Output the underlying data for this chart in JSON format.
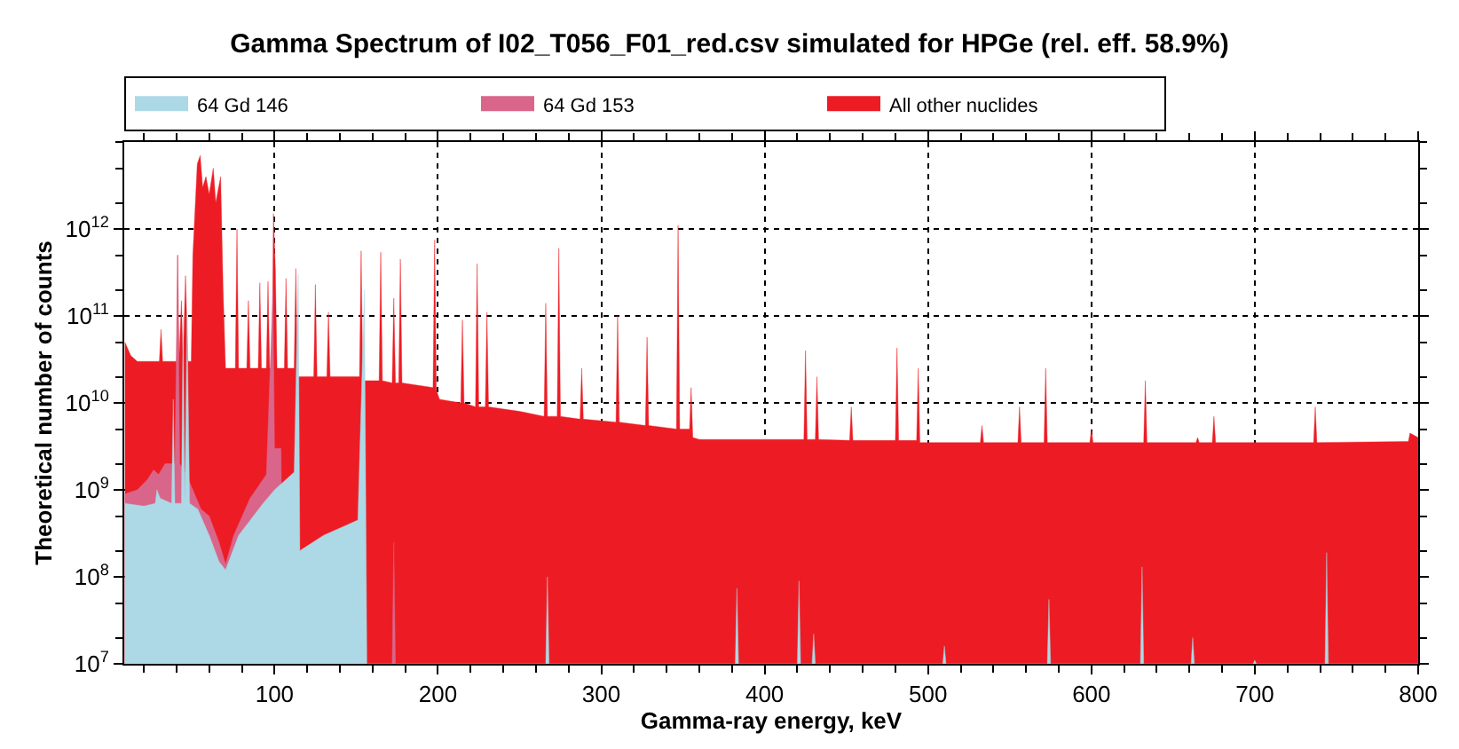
{
  "chart_data": {
    "type": "area",
    "title": "Gamma Spectrum of I02_T056_F01_red.csv simulated for HPGe (rel. eff. 58.9%)",
    "xlabel": "Gamma-ray energy, keV",
    "ylabel": "Theoretical number of counts",
    "log": "y",
    "grid": true,
    "legend": "top",
    "xlim": [
      8,
      800
    ],
    "xticks": [
      100,
      200,
      300,
      400,
      500,
      600,
      700,
      800
    ],
    "ylim": [
      10000000.0,
      10000000000000.0
    ],
    "yticks": [
      {
        "value": 10000000.0,
        "label": "10$^{7}$"
      },
      {
        "value": 100000000.0,
        "label": "10$^{8}$"
      },
      {
        "value": 1000000000.0,
        "label": "10$^{9}$"
      },
      {
        "value": 10000000000.0,
        "label": "10$^{10}$"
      },
      {
        "value": 100000000000.0,
        "label": "10$^{11}$"
      },
      {
        "value": 1000000000000.0,
        "label": "10$^{12}$"
      }
    ],
    "series": [
      {
        "name": "All other nuclides",
        "color": "#ed1c24",
        "x": [
          8.4,
          12,
          16,
          26,
          29.5,
          30.5,
          31.5,
          40,
          40.7,
          41.5,
          43,
          44,
          45.5,
          47,
          49,
          50,
          52.7,
          54.5,
          56,
          58,
          60,
          62.5,
          64,
          67,
          68.5,
          70,
          76,
          77,
          78,
          83,
          84,
          85,
          90,
          91,
          92,
          95,
          96,
          97,
          98.5,
          99.3,
          100.5,
          101.5,
          106,
          107,
          108,
          112,
          113,
          114,
          124,
          125,
          126,
          132,
          133,
          134,
          152,
          153,
          154,
          164,
          165,
          166,
          172,
          173,
          174,
          176,
          177,
          178,
          197,
          198,
          199,
          201,
          214,
          215,
          216,
          223,
          224,
          225,
          229,
          230,
          231,
          250,
          265,
          266,
          267,
          273,
          274,
          275,
          287,
          288,
          289,
          309,
          310,
          311,
          327,
          328,
          329,
          346,
          347,
          348,
          354,
          355,
          356,
          360,
          424,
          425,
          426,
          431,
          432,
          433,
          452,
          453,
          454,
          480,
          481,
          482,
          493,
          494,
          495,
          532,
          533,
          534,
          555,
          556,
          557,
          571,
          572,
          573,
          599,
          600,
          601,
          632,
          633,
          634,
          664,
          665,
          666,
          674,
          675,
          676,
          736,
          737,
          738,
          794,
          795,
          800
        ],
        "values": [
          50000000000.0,
          35000000000.0,
          30000000000.0,
          30000000000.0,
          30000000000.0,
          70000000000.0,
          30000000000.0,
          30000000000.0,
          500000000000.0,
          30000000000.0,
          150000000000.0,
          30000000000.0,
          290000000000.0,
          30000000000.0,
          30000000000.0,
          500000000000.0,
          5600000000000.0,
          7000000000000.0,
          3000000000000.0,
          4000000000000.0,
          2500000000000.0,
          5000000000000.0,
          2000000000000.0,
          4000000000000.0,
          200000000000.0,
          25000000000.0,
          25000000000.0,
          1000000000000.0,
          25000000000.0,
          25000000000.0,
          150000000000.0,
          25000000000.0,
          25000000000.0,
          240000000000.0,
          25000000000.0,
          25000000000.0,
          250000000000.0,
          25000000000.0,
          25000000000.0,
          1500000000000.0,
          350000000000.0,
          25000000000.0,
          25000000000.0,
          270000000000.0,
          25000000000.0,
          25000000000.0,
          350000000000.0,
          20000000000.0,
          20000000000.0,
          230000000000.0,
          20000000000.0,
          20000000000.0,
          110000000000.0,
          20000000000.0,
          20000000000.0,
          560000000000.0,
          18000000000.0,
          18000000000.0,
          540000000000.0,
          18000000000.0,
          17000000000.0,
          160000000000.0,
          17000000000.0,
          17000000000.0,
          450000000000.0,
          17000000000.0,
          15000000000.0,
          750000000000.0,
          14000000000.0,
          11000000000.0,
          10000000000.0,
          90000000000.0,
          10000000000.0,
          9000000000.0,
          400000000000.0,
          9000000000.0,
          9000000000.0,
          110000000000.0,
          9000000000.0,
          8000000000.0,
          7000000000.0,
          140000000000.0,
          7000000000.0,
          7000000000.0,
          600000000000.0,
          7000000000.0,
          6500000000.0,
          25000000000.0,
          6500000000.0,
          6000000000.0,
          100000000000.0,
          6000000000.0,
          5500000000.0,
          57000000000.0,
          5500000000.0,
          5000000000.0,
          1100000000000.0,
          5000000000.0,
          5000000000.0,
          15000000000.0,
          4000000000.0,
          3800000000.0,
          3800000000.0,
          40000000000.0,
          3800000000.0,
          3800000000.0,
          20000000000.0,
          3800000000.0,
          3700000000.0,
          9000000000.0,
          3700000000.0,
          3700000000.0,
          43000000000.0,
          3700000000.0,
          3700000000.0,
          25000000000.0,
          3500000000.0,
          3500000000.0,
          5500000000.0,
          3500000000.0,
          3500000000.0,
          9000000000.0,
          3500000000.0,
          3500000000.0,
          25000000000.0,
          3500000000.0,
          3500000000.0,
          5000000000.0,
          3500000000.0,
          3500000000.0,
          18000000000.0,
          3500000000.0,
          3500000000.0,
          4000000000.0,
          3500000000.0,
          3500000000.0,
          7000000000.0,
          3500000000.0,
          3500000000.0,
          9000000000.0,
          3500000000.0,
          3600000000.0,
          4500000000.0,
          4000000000.0
        ]
      },
      {
        "name": "64 Gd 153",
        "color": "#d9668a",
        "x": [
          8.4,
          16,
          22,
          26,
          29,
          33,
          39,
          40.7,
          42,
          46,
          50,
          55,
          60,
          66,
          70,
          75,
          85,
          95,
          99,
          100,
          104,
          105,
          172,
          173,
          174,
          800
        ],
        "values": [
          900000000.0,
          1000000000.0,
          1300000000.0,
          1700000000.0,
          1500000000.0,
          2000000000.0,
          2000000000.0,
          500000000000.0,
          2000000000.0,
          1500000000.0,
          1000000000.0,
          600000000.0,
          500000000.0,
          250000000.0,
          140000000.0,
          300000000.0,
          800000000.0,
          1500000000.0,
          200000000000.0,
          3000000000.0,
          3000000000.0,
          10000000.0,
          10000000.0,
          250000000.0,
          10000000.0,
          10000000.0
        ]
      },
      {
        "name": "64 Gd 146",
        "color": "#add8e6",
        "x": [
          8.4,
          20,
          27,
          28,
          30,
          37,
          38,
          39,
          43,
          44,
          45,
          46.5,
          48,
          53,
          60,
          66,
          70,
          78,
          93,
          100,
          112,
          114.5,
          115.5,
          130,
          145,
          151,
          155,
          156.5,
          266,
          267,
          268,
          382,
          383,
          384,
          420,
          421,
          422,
          429,
          430,
          431,
          509,
          510,
          511,
          573,
          574,
          575,
          630,
          631,
          632,
          661,
          662,
          663,
          699,
          700,
          701,
          743,
          744,
          745,
          800
        ],
        "values": [
          700000000.0,
          650000000.0,
          700000000.0,
          1000000000.0,
          800000000.0,
          700000000.0,
          11000000000.0,
          700000000.0,
          700000000.0,
          100000000000.0,
          700000000.0,
          100000000000.0,
          700000000.0,
          600000000.0,
          300000000.0,
          150000000.0,
          120000000.0,
          300000000.0,
          700000000.0,
          1000000000.0,
          1600000000.0,
          300000000000.0,
          200000000.0,
          300000000.0,
          400000000.0,
          450000000.0,
          200000000000.0,
          10000000.0,
          10000000.0,
          100000000.0,
          10000000.0,
          10000000.0,
          74000000.0,
          10000000.0,
          10000000.0,
          90000000.0,
          10000000.0,
          10000000.0,
          22000000.0,
          10000000.0,
          10000000.0,
          16000000.0,
          10000000.0,
          10000000.0,
          55000000.0,
          10000000.0,
          10000000.0,
          130000000.0,
          10000000.0,
          10000000.0,
          20000000.0,
          10000000.0,
          10000000.0,
          11000000.0,
          10000000.0,
          10000000.0,
          190000000.0,
          10000000.0,
          10000000.0
        ]
      }
    ]
  }
}
